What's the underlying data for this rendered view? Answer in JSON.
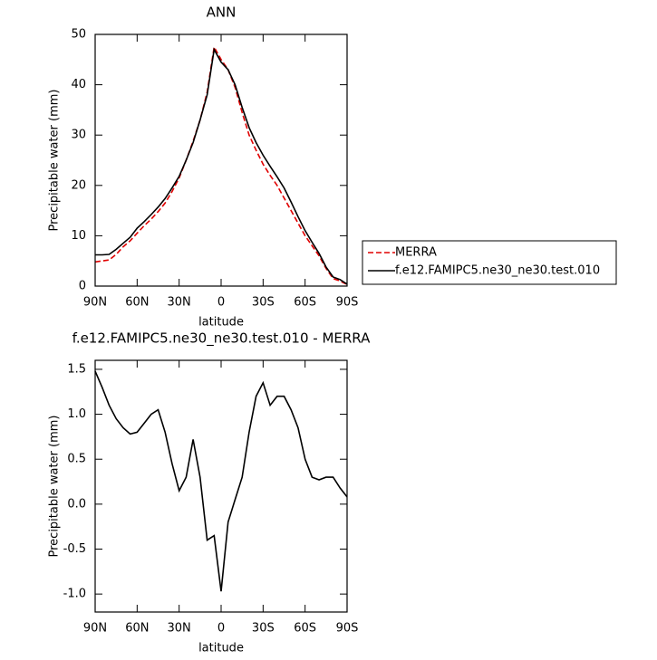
{
  "chart_data": [
    {
      "type": "line",
      "title": "ANN",
      "xlabel": "latitude",
      "ylabel": "Precipitable water (mm)",
      "x": [
        90,
        85,
        80,
        75,
        70,
        65,
        60,
        55,
        50,
        45,
        40,
        35,
        30,
        25,
        20,
        15,
        10,
        5,
        0,
        -5,
        -10,
        -15,
        -20,
        -25,
        -30,
        -35,
        -40,
        -45,
        -50,
        -55,
        -60,
        -65,
        -70,
        -75,
        -80,
        -85,
        -90
      ],
      "xlim": [
        90,
        -90
      ],
      "xticks": [
        {
          "value": 90,
          "label": "90N"
        },
        {
          "value": 60,
          "label": "60N"
        },
        {
          "value": 30,
          "label": "30N"
        },
        0,
        {
          "value": -30,
          "label": "30S"
        },
        {
          "value": -60,
          "label": "60S"
        },
        {
          "value": -90,
          "label": "90S"
        }
      ],
      "ylim": [
        0,
        50
      ],
      "yticks": [
        0,
        10,
        20,
        30,
        40,
        50
      ],
      "series": [
        {
          "name": "MERRA",
          "color": "#e00000",
          "line_style": "dashed",
          "values": [
            4.8,
            5,
            5.2,
            6.3,
            7.8,
            9,
            10.5,
            12,
            13.3,
            14.8,
            16.5,
            18.8,
            21.5,
            25,
            28.8,
            33,
            38.5,
            47.5,
            45,
            43,
            39.5,
            34.5,
            30,
            27,
            24.2,
            22,
            20,
            17.5,
            15,
            12.5,
            10,
            8,
            6,
            3.5,
            1.5,
            1,
            0.3
          ]
        },
        {
          "name": "f.e12.FAMIPC5.ne30_ne30.test.010",
          "color": "#000000",
          "line_style": "solid",
          "values": [
            6.2,
            6.2,
            6.3,
            7.3,
            8.5,
            9.7,
            11.5,
            12.8,
            14.2,
            15.7,
            17.4,
            19.5,
            21.8,
            25,
            28.5,
            33,
            38,
            47,
            44.5,
            43,
            40,
            35.5,
            31.5,
            28.5,
            26,
            23.8,
            21.7,
            19.5,
            16.7,
            13.8,
            11,
            8.7,
            6.5,
            3.8,
            1.8,
            1.3,
            0.4
          ]
        }
      ]
    },
    {
      "type": "line",
      "title": "f.e12.FAMIPC5.ne30_ne30.test.010 - MERRA",
      "xlabel": "latitude",
      "ylabel": "Precipitable water (mm)",
      "x": [
        90,
        85,
        80,
        75,
        70,
        65,
        60,
        55,
        50,
        45,
        40,
        35,
        30,
        25,
        20,
        15,
        10,
        5,
        0,
        -5,
        -10,
        -15,
        -20,
        -25,
        -30,
        -35,
        -40,
        -45,
        -50,
        -55,
        -60,
        -65,
        -70,
        -75,
        -80,
        -85,
        -90
      ],
      "xlim": [
        90,
        -90
      ],
      "xticks": [
        {
          "value": 90,
          "label": "90N"
        },
        {
          "value": 60,
          "label": "60N"
        },
        {
          "value": 30,
          "label": "30N"
        },
        0,
        {
          "value": -30,
          "label": "30S"
        },
        {
          "value": -60,
          "label": "60S"
        },
        {
          "value": -90,
          "label": "90S"
        }
      ],
      "ylim": [
        -1.2,
        1.6
      ],
      "yticks": [
        {
          "value": -1,
          "label": "-1.0"
        },
        {
          "value": -0.5,
          "label": "-0.5"
        },
        {
          "value": 0,
          "label": "0.0"
        },
        {
          "value": 0.5,
          "label": "0.5"
        },
        {
          "value": 1,
          "label": "1.0"
        },
        {
          "value": 1.5,
          "label": "1.5"
        }
      ],
      "series": [
        {
          "color": "#000000",
          "line_style": "solid",
          "values": [
            1.48,
            1.3,
            1.1,
            0.95,
            0.85,
            0.78,
            0.8,
            0.9,
            1.0,
            1.05,
            0.8,
            0.45,
            0.15,
            0.3,
            0.72,
            0.3,
            -0.4,
            -0.35,
            -0.97,
            -0.2,
            0.05,
            0.3,
            0.8,
            1.2,
            1.35,
            1.1,
            1.2,
            1.2,
            1.05,
            0.85,
            0.5,
            0.3,
            0.27,
            0.3,
            0.3,
            0.18,
            0.08
          ]
        }
      ]
    }
  ]
}
